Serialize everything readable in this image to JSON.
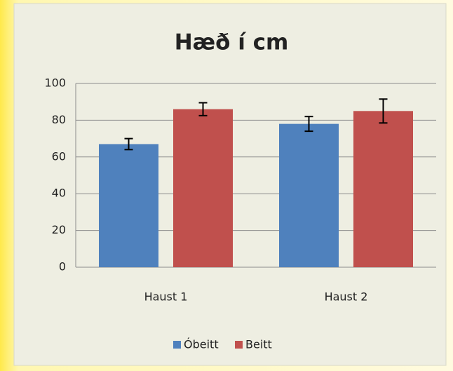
{
  "chart_data": {
    "type": "bar",
    "title": "Hæð í cm",
    "categories": [
      "Haust 1",
      "Haust 2"
    ],
    "series": [
      {
        "name": "Óbeitt",
        "color": "#4f81bd",
        "values": [
          67,
          78
        ],
        "errors": [
          3,
          4
        ]
      },
      {
        "name": "Beitt",
        "color": "#c0504d",
        "values": [
          86,
          85
        ],
        "errors": [
          3.5,
          6.5
        ]
      }
    ],
    "ylim": [
      0,
      100
    ],
    "yticks": [
      0,
      20,
      40,
      60,
      80,
      100
    ],
    "grid": true,
    "legend": "bottom"
  }
}
